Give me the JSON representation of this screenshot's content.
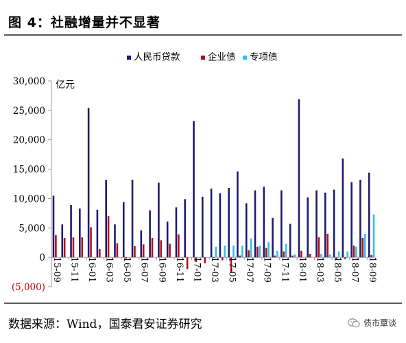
{
  "figure": {
    "title": "图 4：社融增量并不显著",
    "source": "数据来源：Wind，国泰君安证券研究",
    "brand": "债市覃谈",
    "brand_icon": "wechat-icon"
  },
  "chart_data": {
    "type": "bar",
    "unit_label": "亿元",
    "ylim": [
      -5000,
      30000
    ],
    "yticks": [
      -5000,
      0,
      5000,
      10000,
      15000,
      20000,
      25000,
      30000
    ],
    "ytick_labels": [
      "(5,000)",
      "0",
      "5,000",
      "10,000",
      "15,000",
      "20,000",
      "25,000",
      "30,000"
    ],
    "negative_tick_color": "#c00000",
    "legend_position": "top",
    "grid": false,
    "categories": [
      "15-09",
      "15-10",
      "15-11",
      "15-12",
      "16-01",
      "16-02",
      "16-03",
      "16-04",
      "16-05",
      "16-06",
      "16-07",
      "16-08",
      "16-09",
      "16-10",
      "16-11",
      "16-12",
      "17-01",
      "17-02",
      "17-03",
      "17-04",
      "17-05",
      "17-06",
      "17-07",
      "17-08",
      "17-09",
      "17-10",
      "17-11",
      "17-12",
      "18-01",
      "18-02",
      "18-03",
      "18-04",
      "18-05",
      "18-06",
      "18-07",
      "18-08",
      "18-09"
    ],
    "xtick_labels": [
      "15-09",
      "15-11",
      "16-01",
      "16-03",
      "16-05",
      "16-07",
      "16-09",
      "16-11",
      "17-01",
      "17-03",
      "17-05",
      "17-07",
      "17-09",
      "17-11",
      "18-01",
      "18-03",
      "18-05",
      "18-07",
      "18-09"
    ],
    "series": [
      {
        "name": "人民币贷款",
        "color": "#1f1a6e",
        "values": [
          10500,
          5600,
          8900,
          8300,
          25400,
          8100,
          13200,
          5600,
          9400,
          13200,
          4600,
          8000,
          12700,
          6100,
          8500,
          9900,
          23200,
          10300,
          11700,
          10900,
          11800,
          14600,
          9200,
          11400,
          12000,
          6700,
          11400,
          5700,
          26900,
          10200,
          11400,
          11000,
          11500,
          16800,
          12800,
          13200,
          14400
        ]
      },
      {
        "name": "企业债",
        "color": "#b0101e",
        "values": [
          3800,
          3300,
          3400,
          3400,
          5100,
          1400,
          7000,
          2400,
          -200,
          1900,
          2200,
          3300,
          2900,
          2300,
          3900,
          -2000,
          -800,
          -1000,
          -100,
          -500,
          -2500,
          300,
          1200,
          1800,
          1600,
          300,
          1000,
          300,
          1100,
          600,
          3400,
          4000,
          -400,
          -300,
          2000,
          3300,
          400
        ]
      },
      {
        "name": "专项债",
        "color": "#2cc3e6",
        "values": [
          0,
          0,
          0,
          0,
          0,
          0,
          0,
          0,
          0,
          0,
          0,
          0,
          0,
          0,
          0,
          0,
          0,
          0,
          1800,
          2000,
          2000,
          2000,
          3200,
          2000,
          2600,
          1100,
          2300,
          500,
          0,
          0,
          600,
          500,
          1000,
          1000,
          1800,
          4000,
          7300
        ]
      }
    ]
  }
}
